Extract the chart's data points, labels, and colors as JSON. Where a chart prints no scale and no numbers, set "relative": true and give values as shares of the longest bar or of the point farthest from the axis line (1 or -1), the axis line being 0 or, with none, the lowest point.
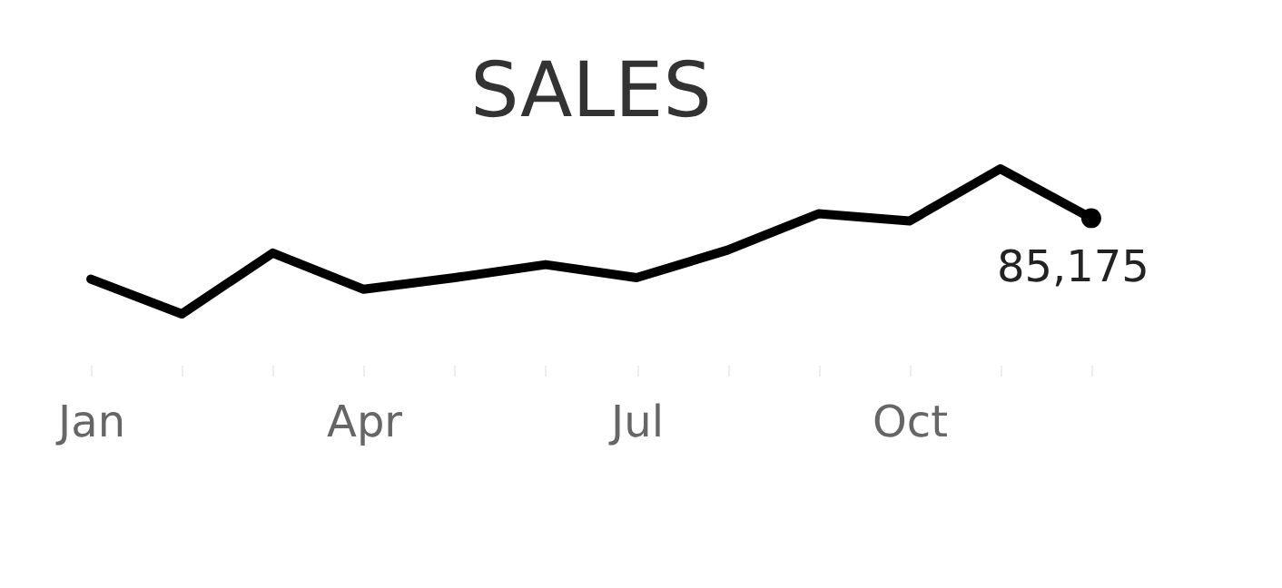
{
  "chart_data": {
    "type": "line",
    "title": "SALES",
    "relative": true,
    "categories": [
      "Jan",
      null,
      null,
      "Apr",
      null,
      null,
      "Jul",
      null,
      null,
      "Oct",
      null,
      null
    ],
    "series": [
      {
        "color": "#000000",
        "values": [
          0.24,
          0.0,
          0.42,
          0.17,
          0.25,
          0.34,
          0.25,
          0.44,
          0.69,
          0.64,
          1.0,
          0.66
        ]
      }
    ],
    "annotations": [
      "85,175"
    ],
    "grid": false,
    "tick_labels": "x",
    "line_style": "solid"
  }
}
